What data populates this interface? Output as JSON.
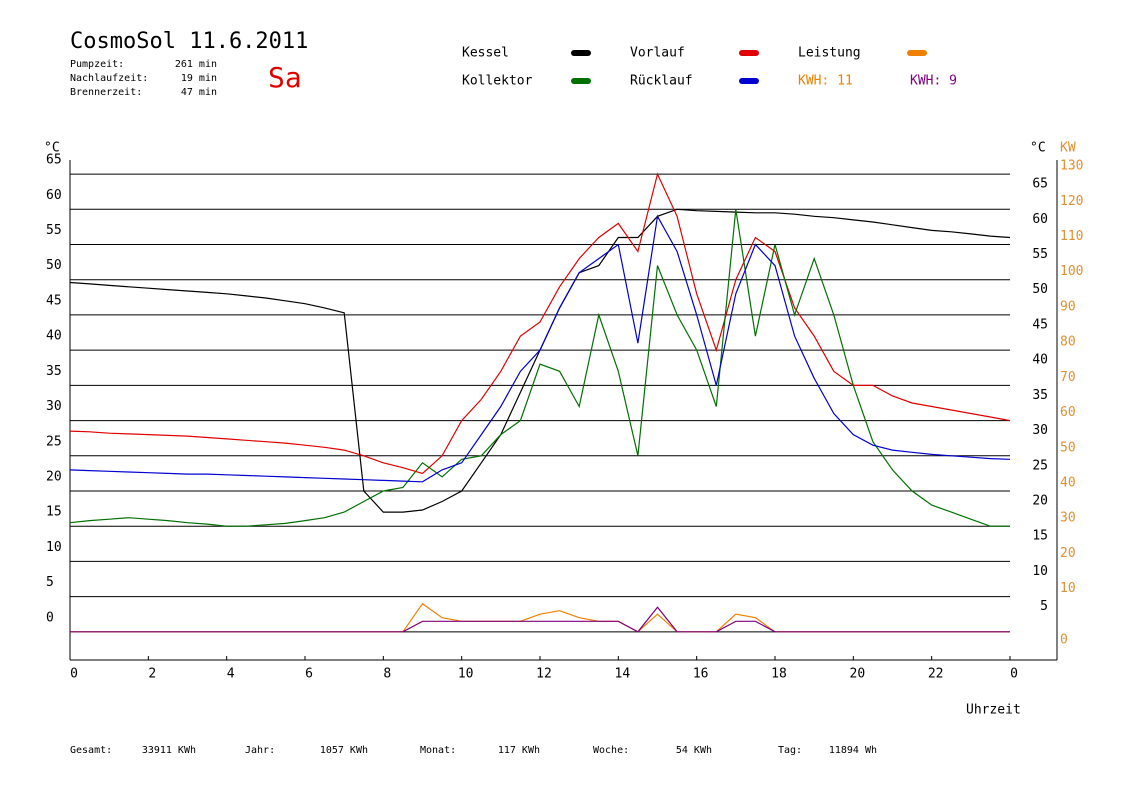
{
  "chart_data": {
    "type": "line",
    "title": "CosmoSol 11.6.2011",
    "day": "Sa",
    "stats": [
      [
        "Pumpzeit:",
        "261 min"
      ],
      [
        "Nachlaufzeit:",
        "19 min"
      ],
      [
        "Brennerzeit:",
        "47 min"
      ]
    ],
    "footer": [
      [
        "Gesamt:",
        "33911 KWh"
      ],
      [
        "Jahr:",
        "1057 KWh"
      ],
      [
        "Monat:",
        "117 KWh"
      ],
      [
        "Woche:",
        "54 KWh"
      ],
      [
        "Tag:",
        "11894 Wh"
      ]
    ],
    "y_label": "°C",
    "y_right_label": "°C",
    "y2_label": "KW",
    "x_label": "Uhrzeit",
    "kwh_totals": [
      {
        "label": "KWH: 11",
        "color": "#f08000"
      },
      {
        "label": "KWH: 9",
        "color": "#800080"
      }
    ],
    "xlim": [
      0,
      25.2
    ],
    "xticks": [
      0,
      2,
      4,
      6,
      8,
      10,
      12,
      14,
      16,
      18,
      20,
      22,
      {
        "value": 24,
        "label": "0"
      }
    ],
    "ylim": [
      -4,
      67
    ],
    "yticks": [
      0,
      5,
      10,
      15,
      20,
      25,
      30,
      35,
      40,
      45,
      50,
      55,
      60,
      65
    ],
    "y_right_ticks": [
      5,
      10,
      15,
      20,
      25,
      30,
      35,
      40,
      45,
      50,
      55,
      60,
      65
    ],
    "y2lim": [
      -8,
      134
    ],
    "y2ticks": [
      0,
      10,
      20,
      30,
      40,
      50,
      60,
      70,
      80,
      90,
      100,
      110,
      120,
      130
    ],
    "grid": true,
    "x": [
      0,
      0.5,
      1,
      1.5,
      2,
      2.5,
      3,
      3.5,
      4,
      4.5,
      5,
      5.5,
      6,
      6.5,
      7,
      7.5,
      8,
      8.5,
      9,
      9.5,
      10,
      10.5,
      11,
      11.5,
      12,
      12.5,
      13,
      13.5,
      14,
      14.5,
      15,
      15.5,
      16,
      16.5,
      17,
      17.5,
      18,
      18.5,
      19,
      19.5,
      20,
      20.5,
      21,
      21.5,
      22,
      22.5,
      23,
      23.5,
      24
    ],
    "series": [
      {
        "name": "Kessel",
        "color": "#000000",
        "values": [
          49.6,
          49.4,
          49.2,
          49,
          48.8,
          48.6,
          48.4,
          48.2,
          48,
          47.7,
          47.4,
          47,
          46.6,
          46,
          45.3,
          20,
          17,
          17,
          17.3,
          18.5,
          20,
          24,
          28,
          34,
          40,
          46,
          51,
          52,
          56,
          56,
          59,
          60,
          59.8,
          59.7,
          59.6,
          59.5,
          59.5,
          59.3,
          59,
          58.8,
          58.5,
          58.2,
          57.8,
          57.4,
          57,
          56.8,
          56.5,
          56.2,
          56
        ]
      },
      {
        "name": "Vorlauf",
        "color": "#e00000",
        "values": [
          28.5,
          28.4,
          28.2,
          28.1,
          28,
          27.9,
          27.8,
          27.6,
          27.4,
          27.2,
          27,
          26.8,
          26.5,
          26.2,
          25.8,
          25,
          24,
          23.3,
          22.5,
          25,
          30,
          33,
          37,
          42,
          44,
          49,
          53,
          56,
          58,
          54,
          65,
          59,
          48,
          40,
          50,
          56,
          54,
          46,
          42,
          37,
          35,
          35,
          33.5,
          32.5,
          32,
          31.5,
          31,
          30.5,
          30
        ]
      },
      {
        "name": "Leistung",
        "color": "#f08000",
        "axis": "y2",
        "values": [
          0,
          0,
          0,
          0,
          0,
          0,
          0,
          0,
          0,
          0,
          0,
          0,
          0,
          0,
          0,
          0,
          0,
          0,
          8,
          4,
          3,
          3,
          3,
          3,
          5,
          6,
          4,
          3,
          3,
          0,
          5,
          0,
          0,
          0,
          5,
          4,
          0,
          0,
          0,
          0,
          0,
          0,
          0,
          0,
          0,
          0,
          0,
          0,
          0
        ]
      },
      {
        "name": "Kollektor",
        "color": "#007000",
        "values": [
          15.5,
          15.8,
          16,
          16.2,
          16,
          15.8,
          15.5,
          15.3,
          15,
          15,
          15.2,
          15.4,
          15.8,
          16.2,
          17,
          18.5,
          20,
          20.5,
          24,
          22,
          24.5,
          25,
          28,
          30,
          38,
          37,
          32,
          45,
          37,
          25,
          52,
          45,
          40,
          32,
          60,
          42,
          55,
          45,
          53,
          45,
          35,
          27,
          23,
          20,
          18,
          17,
          16,
          15,
          15
        ]
      },
      {
        "name": "Rücklauf",
        "color": "#0000d0",
        "values": [
          23,
          22.9,
          22.8,
          22.7,
          22.6,
          22.5,
          22.4,
          22.4,
          22.3,
          22.2,
          22.1,
          22,
          21.9,
          21.8,
          21.7,
          21.6,
          21.5,
          21.4,
          21.3,
          23,
          24,
          28,
          32,
          37,
          40,
          46,
          51,
          53,
          55,
          41,
          59,
          54,
          45,
          35,
          48,
          55,
          52,
          42,
          36,
          31,
          28,
          26.5,
          25.8,
          25.5,
          25.2,
          25,
          24.8,
          24.6,
          24.5
        ]
      },
      {
        "color": "#800080",
        "axis": "y2",
        "values": [
          0,
          0,
          0,
          0,
          0,
          0,
          0,
          0,
          0,
          0,
          0,
          0,
          0,
          0,
          0,
          0,
          0,
          0,
          3,
          3,
          3,
          3,
          3,
          3,
          3,
          3,
          3,
          3,
          3,
          0,
          7,
          0,
          0,
          0,
          3,
          3,
          0,
          0,
          0,
          0,
          0,
          0,
          0,
          0,
          0,
          0,
          0,
          0,
          0
        ]
      }
    ]
  }
}
